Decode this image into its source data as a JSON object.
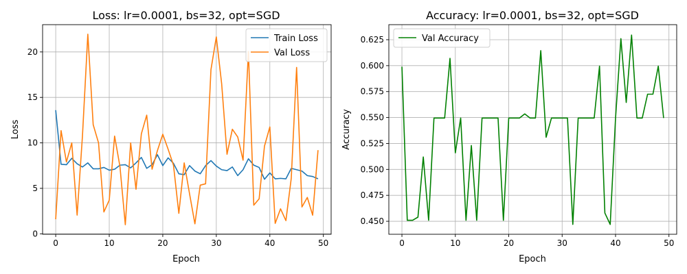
{
  "chart_data": [
    {
      "type": "line",
      "title": "Loss: lr=0.0001, bs=32, opt=SGD",
      "xlabel": "Epoch",
      "ylabel": "Loss",
      "xlim": [
        -2.45,
        51.45
      ],
      "ylim": [
        -0.05,
        23.0
      ],
      "xticks": [
        0,
        10,
        20,
        30,
        40,
        50
      ],
      "yticks": [
        0,
        5,
        10,
        15,
        20
      ],
      "grid": true,
      "legend": "top-right",
      "x": [
        0,
        1,
        2,
        3,
        4,
        5,
        6,
        7,
        8,
        9,
        10,
        11,
        12,
        13,
        14,
        15,
        16,
        17,
        18,
        19,
        20,
        21,
        22,
        23,
        24,
        25,
        26,
        27,
        28,
        29,
        30,
        31,
        32,
        33,
        34,
        35,
        36,
        37,
        38,
        39,
        40,
        41,
        42,
        43,
        44,
        45,
        46,
        47,
        48,
        49
      ],
      "series": [
        {
          "name": "Train Loss",
          "color": "#1f77b4",
          "values": [
            13.6,
            7.65,
            7.6,
            8.3,
            7.7,
            7.35,
            7.8,
            7.15,
            7.15,
            7.3,
            7.0,
            7.1,
            7.55,
            7.6,
            7.25,
            7.8,
            8.4,
            7.2,
            7.6,
            8.7,
            7.5,
            8.35,
            7.75,
            6.6,
            6.5,
            7.5,
            6.9,
            6.6,
            7.5,
            8.05,
            7.45,
            7.05,
            6.95,
            7.35,
            6.4,
            7.05,
            8.25,
            7.55,
            7.3,
            6.0,
            6.7,
            6.05,
            6.1,
            6.05,
            7.2,
            7.05,
            6.9,
            6.4,
            6.3,
            6.05
          ]
        },
        {
          "name": "Val Loss",
          "color": "#ff7f0e",
          "values": [
            1.6,
            11.35,
            7.9,
            10.0,
            2.05,
            10.8,
            21.95,
            12.0,
            10.0,
            2.4,
            3.7,
            10.75,
            7.4,
            1.0,
            10.0,
            4.9,
            11.0,
            13.05,
            7.1,
            9.15,
            10.95,
            9.3,
            7.55,
            2.25,
            7.8,
            4.4,
            1.1,
            5.35,
            5.5,
            18.05,
            21.65,
            16.5,
            8.75,
            11.5,
            10.65,
            8.1,
            20.05,
            3.15,
            3.85,
            9.65,
            11.75,
            1.15,
            2.75,
            1.45,
            6.1,
            18.3,
            2.95,
            4.0,
            2.05,
            9.2
          ]
        }
      ]
    },
    {
      "type": "line",
      "title": "Accuracy: lr=0.0001, bs=32, opt=SGD",
      "xlabel": "Epoch",
      "ylabel": "Accuracy",
      "xlim": [
        -2.45,
        51.45
      ],
      "ylim": [
        0.4375,
        0.6395
      ],
      "xticks": [
        0,
        10,
        20,
        30,
        40,
        50
      ],
      "yticks": [
        0.45,
        0.475,
        0.5,
        0.525,
        0.55,
        0.575,
        0.6,
        0.625
      ],
      "grid": true,
      "legend": "top-left",
      "x": [
        0,
        1,
        2,
        3,
        4,
        5,
        6,
        7,
        8,
        9,
        10,
        11,
        12,
        13,
        14,
        15,
        16,
        17,
        18,
        19,
        20,
        21,
        22,
        23,
        24,
        25,
        26,
        27,
        28,
        29,
        30,
        31,
        32,
        33,
        34,
        35,
        36,
        37,
        38,
        39,
        40,
        41,
        42,
        43,
        44,
        45,
        46,
        47,
        48,
        49
      ],
      "series": [
        {
          "name": "Val Accuracy",
          "color": "#008000",
          "values": [
            0.599,
            0.451,
            0.451,
            0.454,
            0.512,
            0.451,
            0.5495,
            0.5495,
            0.5495,
            0.607,
            0.516,
            0.5495,
            0.451,
            0.523,
            0.451,
            0.5495,
            0.5495,
            0.5495,
            0.5495,
            0.451,
            0.5495,
            0.5495,
            0.5495,
            0.5535,
            0.5495,
            0.5495,
            0.6145,
            0.531,
            0.5495,
            0.5495,
            0.5495,
            0.5495,
            0.447,
            0.5495,
            0.5495,
            0.5495,
            0.5495,
            0.5995,
            0.458,
            0.447,
            0.5495,
            0.626,
            0.5645,
            0.6295,
            0.5495,
            0.5495,
            0.5725,
            0.5725,
            0.5995,
            0.5495
          ]
        }
      ]
    }
  ]
}
